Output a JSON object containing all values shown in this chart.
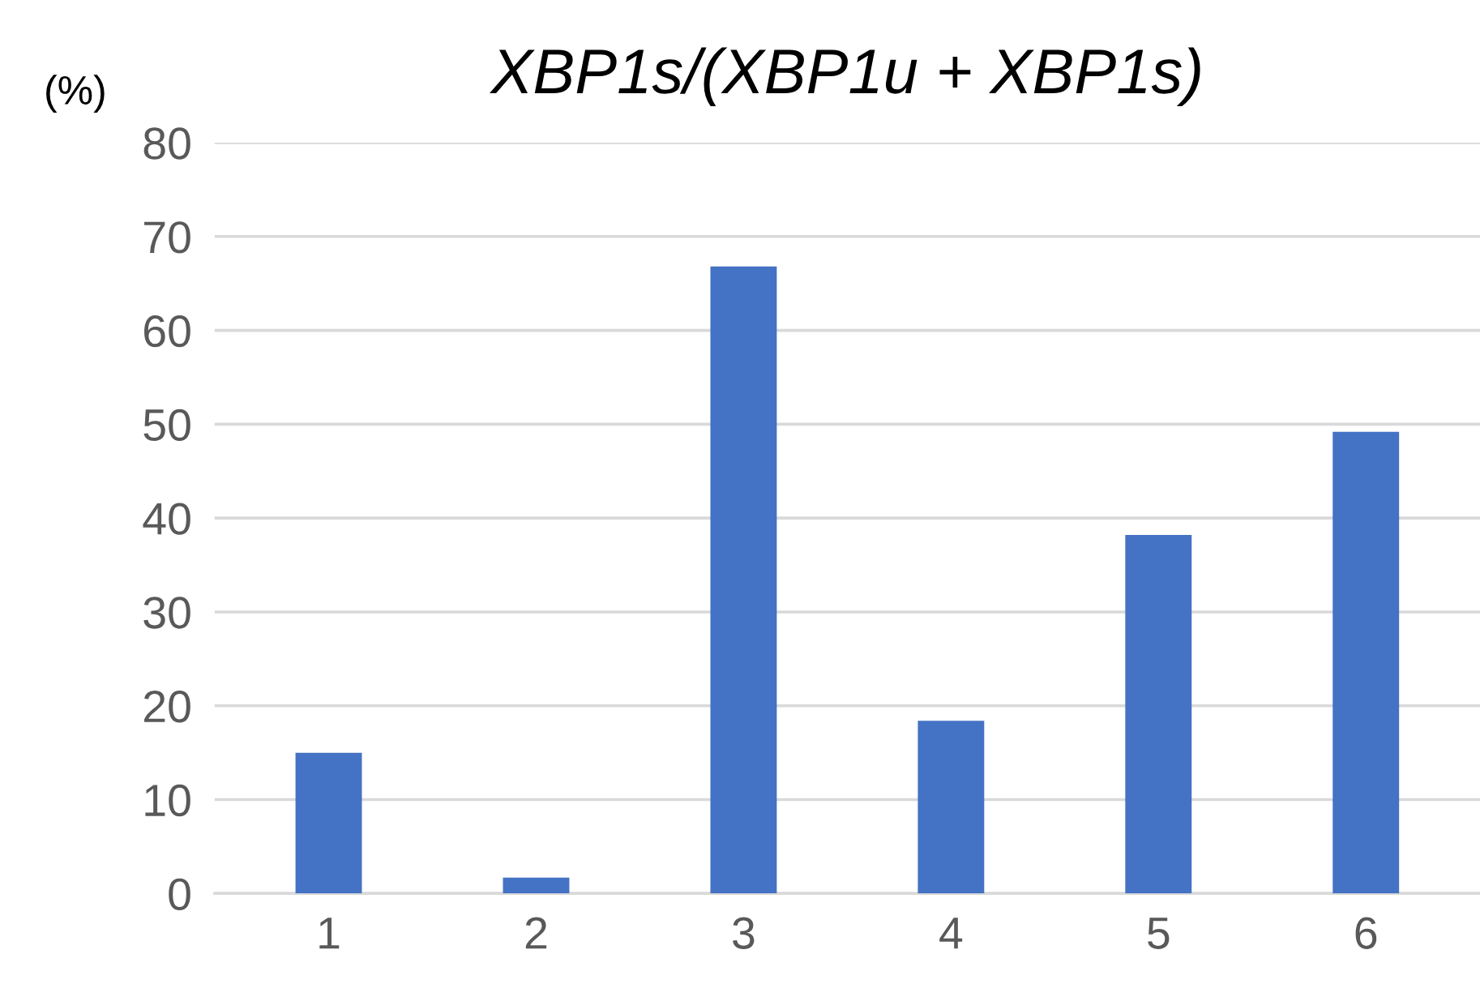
{
  "chart_data": {
    "type": "bar",
    "title": "XBP1s/(XBP1u + XBP1s)",
    "ylabel": "(%)",
    "categories": [
      "1",
      "2",
      "3",
      "4",
      "5",
      "6"
    ],
    "values": [
      15,
      1.7,
      66.8,
      18.4,
      38.2,
      49.2
    ],
    "color": "#4472c4",
    "ylim": [
      0,
      80
    ],
    "yticks": [
      0,
      10,
      20,
      30,
      40,
      50,
      60,
      70,
      80
    ],
    "grid": "y",
    "legend": false
  }
}
